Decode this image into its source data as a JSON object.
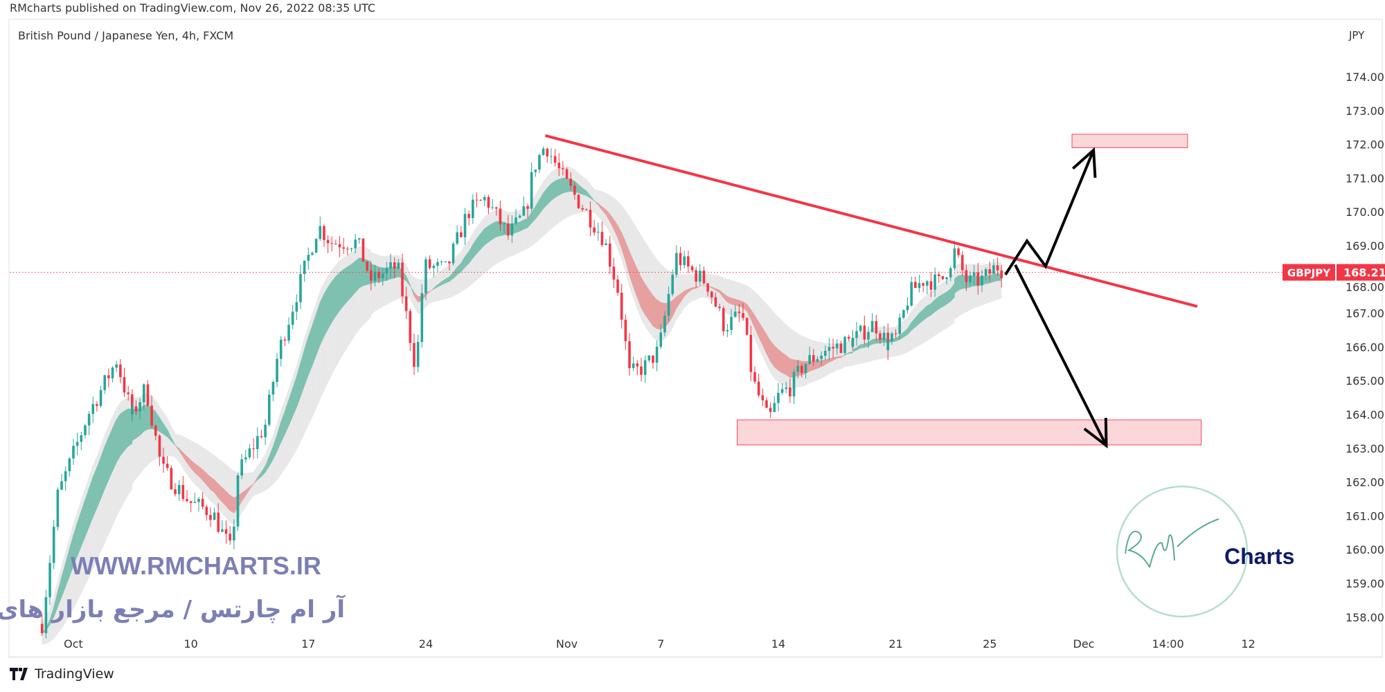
{
  "header": {
    "published": "RMcharts published on TradingView.com, Nov 26, 2022 08:35 UTC"
  },
  "symbol_title": "British Pound / Japanese Yen, 4h, FXCM",
  "footer": {
    "brand": "TradingView",
    "logo_icon": "tradingview-logo-icon"
  },
  "watermark": {
    "url": "WWW.RMCHARTS.IR",
    "persian": "آر ام چارتس / مرجع بازار های مالی",
    "color": "#7b7fb5",
    "logo_text": "Charts",
    "logo_script": "RM",
    "logo_color": "#0e1a6b",
    "logo_ring_color": "#9fd4c8"
  },
  "colors": {
    "up": "#26a69a",
    "down": "#f23645",
    "ribbon_up": "#7fc1b1",
    "ribbon_down": "#e6a0a0",
    "envelope": "#e4e4e4",
    "trendline": "#f23645",
    "zone_fill": "#fbd3d6",
    "zone_border": "#f23645",
    "arrow": "#000000"
  },
  "chart_data": {
    "type": "candlestick",
    "timeframe": "4h",
    "y_axis_unit": "JPY",
    "ylim": [
      157.7,
      174.5
    ],
    "y_ticks": [
      158,
      159,
      160,
      161,
      162,
      163,
      164,
      165,
      166,
      167,
      168,
      169,
      170,
      171,
      172,
      173,
      174
    ],
    "y_tick_format": "0.000",
    "x_ticks": [
      {
        "label": "Oct",
        "date": "2022-10-03 00:00"
      },
      {
        "label": "10",
        "date": "2022-10-10 00:00"
      },
      {
        "label": "17",
        "date": "2022-10-17 00:00"
      },
      {
        "label": "24",
        "date": "2022-10-24 00:00"
      },
      {
        "label": "Nov",
        "date": "2022-11-01 00:00"
      },
      {
        "label": "7",
        "date": "2022-11-07 00:00"
      },
      {
        "label": "14",
        "date": "2022-11-14 00:00"
      },
      {
        "label": "21",
        "date": "2022-11-21 00:00"
      },
      {
        "label": "25",
        "date": "2022-11-25 00:00"
      },
      {
        "label": "Dec",
        "date": "2022-12-01 00:00"
      },
      {
        "label": "14:00",
        "date": "2022-12-06 14:00"
      },
      {
        "label": "12",
        "date": "2022-12-12 00:00"
      }
    ],
    "last_price": {
      "symbol": "GBPJPY",
      "value": "168.210",
      "price": 168.21
    },
    "price_path": [
      [
        "2022-09-29 16:00",
        157.8
      ],
      [
        "2022-09-30 08:00",
        161.6
      ],
      [
        "2022-10-03 15:00",
        164.0
      ],
      [
        "2022-10-04 20:00",
        165.6
      ],
      [
        "2022-10-05 12:00",
        164.0
      ],
      [
        "2022-10-06 02:00",
        164.8
      ],
      [
        "2022-10-06 18:00",
        162.4
      ],
      [
        "2022-10-07 23:00",
        161.4
      ],
      [
        "2022-10-10 22:00",
        161.1
      ],
      [
        "2022-10-11 18:00",
        159.9
      ],
      [
        "2022-10-11 23:00",
        162.2
      ],
      [
        "2022-10-13 04:00",
        163.7
      ],
      [
        "2022-10-13 17:00",
        165.8
      ],
      [
        "2022-10-17 10:00",
        169.6
      ],
      [
        "2022-10-17 23:00",
        169.1
      ],
      [
        "2022-10-19 02:00",
        169.1
      ],
      [
        "2022-10-19 16:00",
        168.0
      ],
      [
        "2022-10-20 19:00",
        168.4
      ],
      [
        "2022-10-21 14:00",
        165.3
      ],
      [
        "2022-10-21 22:00",
        168.4
      ],
      [
        "2022-10-24 21:00",
        168.3
      ],
      [
        "2022-10-25 19:00",
        170.0
      ],
      [
        "2022-10-26 13:00",
        170.4
      ],
      [
        "2022-10-27 12:00",
        169.3
      ],
      [
        "2022-10-28 06:00",
        170.0
      ],
      [
        "2022-10-28 14:00",
        171.3
      ],
      [
        "2022-10-31 02:00",
        172.0
      ],
      [
        "2022-10-31 22:00",
        170.9
      ],
      [
        "2022-11-01 22:00",
        169.9
      ],
      [
        "2022-11-02 14:00",
        169.2
      ],
      [
        "2022-11-03 05:00",
        167.6
      ],
      [
        "2022-11-03 16:00",
        165.2
      ],
      [
        "2022-11-04 07:00",
        165.4
      ],
      [
        "2022-11-04 22:00",
        165.9
      ],
      [
        "2022-11-07 15:00",
        168.7
      ],
      [
        "2022-11-08 05:00",
        168.3
      ],
      [
        "2022-11-08 23:00",
        167.9
      ],
      [
        "2022-11-09 17:00",
        166.6
      ],
      [
        "2022-11-10 11:00",
        167.0
      ],
      [
        "2022-11-10 22:00",
        165.0
      ],
      [
        "2022-11-11 14:00",
        163.8
      ],
      [
        "2022-11-14 01:00",
        164.6
      ],
      [
        "2022-11-14 12:00",
        164.8
      ],
      [
        "2022-11-15 02:00",
        165.5
      ],
      [
        "2022-11-16 01:00",
        165.9
      ],
      [
        "2022-11-17 04:00",
        166.2
      ],
      [
        "2022-11-18 02:00",
        166.7
      ],
      [
        "2022-11-18 16:00",
        166.1
      ],
      [
        "2022-11-21 01:00",
        166.3
      ],
      [
        "2022-11-21 14:00",
        167.6
      ],
      [
        "2022-11-22 05:00",
        168.0
      ],
      [
        "2022-11-22 22:00",
        167.9
      ],
      [
        "2022-11-23 12:00",
        168.8
      ],
      [
        "2022-11-24 01:00",
        167.9
      ],
      [
        "2022-11-24 17:00",
        168.0
      ],
      [
        "2022-11-25 07:00",
        168.4
      ],
      [
        "2022-11-25 16:00",
        168.21
      ]
    ],
    "drawings": {
      "trendline": [
        [
          "2022-10-31 02:00",
          172.26
        ],
        [
          "2022-12-07 20:00",
          167.2
        ]
      ],
      "target_zone_upper": {
        "from": "2022-11-30 12:00",
        "to": "2022-12-07 10:00",
        "low": 171.9,
        "high": 172.3
      },
      "target_zone_lower": {
        "from": "2022-11-10 06:00",
        "to": "2022-12-08 00:00",
        "low": 163.1,
        "high": 163.84
      },
      "bullish_path": [
        [
          "2022-11-25 16:00",
          168.14
        ],
        [
          "2022-11-28 14:00",
          169.14
        ],
        [
          "2022-11-29 09:00",
          168.39
        ],
        [
          "2022-12-01 10:00",
          171.83
        ]
      ],
      "bearish_path": [
        [
          "2022-11-28 02:00",
          168.43
        ],
        [
          "2022-12-01 23:00",
          163.08
        ]
      ]
    }
  }
}
